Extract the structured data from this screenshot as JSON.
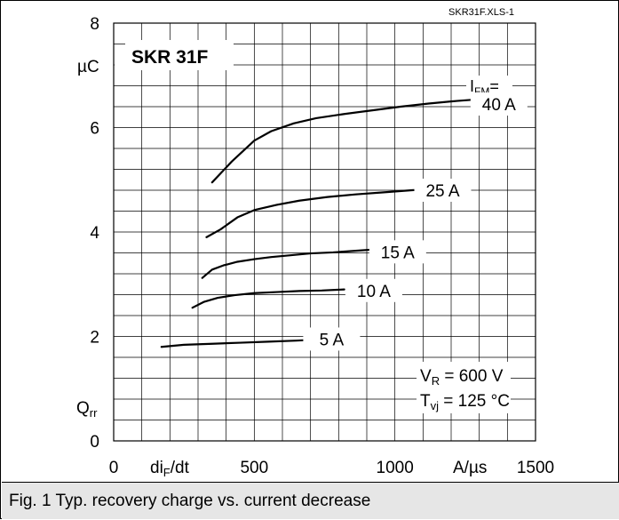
{
  "file_ref": "SKR31F.XLS-1",
  "caption": "Fig. 1 Typ. recovery charge vs. current decrease",
  "chart_data": {
    "type": "line",
    "title": "SKR 31F",
    "xlim": [
      0,
      1500
    ],
    "ylim": [
      0,
      8
    ],
    "x_ticks": [
      {
        "value": 0,
        "label": "0"
      },
      {
        "value": 500,
        "label": "500"
      },
      {
        "value": 1000,
        "label": "1000"
      },
      {
        "value": 1500,
        "label": "1500"
      }
    ],
    "y_ticks": [
      {
        "value": 0,
        "label": "0"
      },
      {
        "value": 2,
        "label": "2"
      },
      {
        "value": 4,
        "label": "4"
      },
      {
        "value": 6,
        "label": "6"
      },
      {
        "value": 8,
        "label": "8"
      }
    ],
    "xlabel": {
      "main": "di",
      "sub": "F",
      "tail": "/dt"
    },
    "xunit": "A/µs",
    "ylabel": {
      "main": "Q",
      "sub": "rr"
    },
    "yunit": "µC",
    "grid": true,
    "x_minor_step": 100,
    "y_minor_step": 0.4,
    "legend_title": {
      "main": "I",
      "sub": "FM",
      "tail": "="
    },
    "series": [
      {
        "name": "40 A",
        "label_x": 1370,
        "label_y": 6.45,
        "x": [
          350,
          420,
          500,
          560,
          640,
          720,
          820,
          920,
          1020,
          1120,
          1220,
          1320
        ],
        "y": [
          4.95,
          5.35,
          5.75,
          5.93,
          6.08,
          6.18,
          6.26,
          6.33,
          6.4,
          6.46,
          6.51,
          6.55
        ]
      },
      {
        "name": "25 A",
        "label_x": 1170,
        "label_y": 4.8,
        "x": [
          330,
          380,
          440,
          500,
          580,
          660,
          760,
          860,
          960,
          1060,
          1130
        ],
        "y": [
          3.9,
          4.05,
          4.28,
          4.42,
          4.52,
          4.6,
          4.67,
          4.72,
          4.76,
          4.8,
          4.82
        ]
      },
      {
        "name": "15 A",
        "label_x": 1010,
        "label_y": 3.62,
        "x": [
          315,
          350,
          390,
          440,
          500,
          560,
          620,
          700,
          780,
          860,
          940
        ],
        "y": [
          3.12,
          3.28,
          3.36,
          3.43,
          3.48,
          3.52,
          3.55,
          3.59,
          3.61,
          3.64,
          3.67
        ]
      },
      {
        "name": "10 A",
        "label_x": 925,
        "label_y": 2.88,
        "x": [
          280,
          320,
          370,
          430,
          500,
          580,
          660,
          740,
          820
        ],
        "y": [
          2.55,
          2.66,
          2.74,
          2.79,
          2.83,
          2.85,
          2.87,
          2.88,
          2.9
        ]
      },
      {
        "name": "5 A",
        "label_x": 775,
        "label_y": 1.95,
        "x": [
          170,
          250,
          350,
          450,
          550,
          650,
          720
        ],
        "y": [
          1.8,
          1.84,
          1.86,
          1.88,
          1.9,
          1.92,
          1.94
        ]
      }
    ],
    "conditions": [
      {
        "main": "V",
        "sub": "R",
        "tail": " = 600 V"
      },
      {
        "main": "T",
        "sub": "vj",
        "tail": " = 125 °C"
      }
    ]
  }
}
